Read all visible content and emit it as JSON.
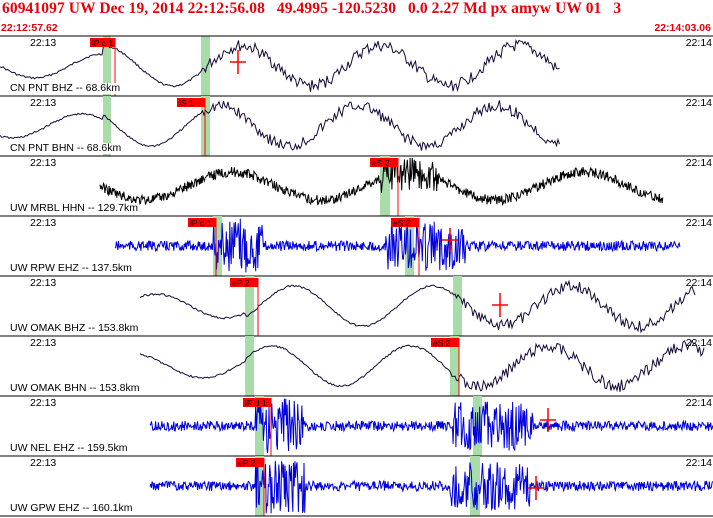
{
  "header": {
    "title": "60941097 UW Dec 19, 2014 22:12:56.08   49.4995 -120.5230   0.0 2.27 Md px amyw UW 01   3",
    "start_time": "22:12:57.62",
    "end_time": "22:14:03.06"
  },
  "colors": {
    "header_text": "#e8000b",
    "pick_flag": "#ff0000",
    "window_band": "#a8dca8",
    "trace_dark": "#180838",
    "trace_black": "#000000",
    "trace_blue": "#0000dd"
  },
  "panels": [
    {
      "label": "CN PNT BHZ -- 68.6km",
      "time_left": "22:13",
      "time_right": "22:14",
      "trace": "purple",
      "style": "smooth",
      "pick": "iP c 1",
      "has_cross": true
    },
    {
      "label": "CN PNT BHN -- 68.6km",
      "time_left": "22:13",
      "time_right": "22:14",
      "trace": "purple",
      "style": "smooth",
      "pick": "iS 1",
      "has_cross": false
    },
    {
      "label": "UW MRBL HHN -- 129.7km",
      "time_left": "22:13",
      "time_right": "22:14",
      "trace": "black",
      "style": "noisy",
      "pick": "eS 2",
      "has_cross": false
    },
    {
      "label": "UW RPW EHZ -- 137.5km",
      "time_left": "22:13",
      "time_right": "22:14",
      "trace": "blue",
      "style": "noise",
      "pick": "iP d 1",
      "pick2": "eS 2",
      "has_cross": true
    },
    {
      "label": "UW OMAK BHZ -- 153.8km",
      "time_left": "22:13",
      "time_right": "22:14",
      "trace": "purple",
      "style": "smooth",
      "pick": "eP 2",
      "has_cross": true
    },
    {
      "label": "UW OMAK BHN -- 153.8km",
      "time_left": "22:13",
      "time_right": "22:14",
      "trace": "purple",
      "style": "smooth",
      "pick": "eS 2",
      "has_cross": false
    },
    {
      "label": "UW NEL EHZ -- 159.5km",
      "time_left": "22:13",
      "time_right": "22:14",
      "trace": "blue",
      "style": "noise",
      "pick": "iP d 1",
      "has_cross": true
    },
    {
      "label": "UW GPW EHZ -- 160.1km",
      "time_left": "22:13",
      "time_right": "22:14",
      "trace": "blue",
      "style": "noise",
      "pick": "eP 2",
      "has_cross": true
    }
  ]
}
